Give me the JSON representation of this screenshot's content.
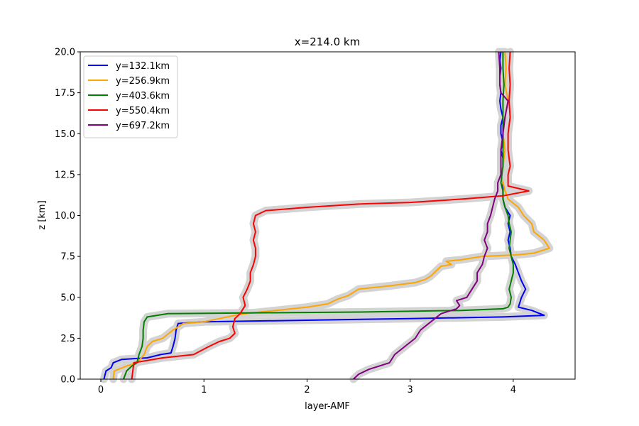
{
  "chart_data": {
    "type": "line",
    "title": "x=214.0 km",
    "xlabel": "layer-AMF",
    "ylabel": "z [km]",
    "xlim": [
      -0.2,
      4.6
    ],
    "ylim": [
      0.0,
      20.0
    ],
    "xticks": [
      0,
      1,
      2,
      3,
      4
    ],
    "xtick_labels": [
      "0",
      "1",
      "2",
      "3",
      "4"
    ],
    "yticks": [
      0.0,
      2.5,
      5.0,
      7.5,
      10.0,
      12.5,
      15.0,
      17.5,
      20.0
    ],
    "ytick_labels": [
      "0.0",
      "2.5",
      "5.0",
      "7.5",
      "10.0",
      "12.5",
      "15.0",
      "17.5",
      "20.0"
    ],
    "grid": false,
    "legend_position": "upper-left",
    "uncertainty_band": {
      "color": "#d3d3d3"
    },
    "series": [
      {
        "name": "y=132.1km",
        "color": "#0000ff",
        "points": [
          [
            0.03,
            0.0
          ],
          [
            0.05,
            0.5
          ],
          [
            0.1,
            0.7
          ],
          [
            0.12,
            1.0
          ],
          [
            0.2,
            1.2
          ],
          [
            0.45,
            1.3
          ],
          [
            0.58,
            1.5
          ],
          [
            0.68,
            1.6
          ],
          [
            0.7,
            2.0
          ],
          [
            0.72,
            2.5
          ],
          [
            0.73,
            3.0
          ],
          [
            0.75,
            3.4
          ],
          [
            1.0,
            3.5
          ],
          [
            2.0,
            3.6
          ],
          [
            3.0,
            3.7
          ],
          [
            3.9,
            3.8
          ],
          [
            4.3,
            3.9
          ],
          [
            4.18,
            4.2
          ],
          [
            4.05,
            4.4
          ],
          [
            4.08,
            5.0
          ],
          [
            4.12,
            5.5
          ],
          [
            4.08,
            6.0
          ],
          [
            4.05,
            6.5
          ],
          [
            4.02,
            7.0
          ],
          [
            3.98,
            7.5
          ],
          [
            3.97,
            8.0
          ],
          [
            3.95,
            8.5
          ],
          [
            3.97,
            9.0
          ],
          [
            3.95,
            9.5
          ],
          [
            3.97,
            10.0
          ],
          [
            3.92,
            10.5
          ],
          [
            3.9,
            11.0
          ],
          [
            3.9,
            11.5
          ],
          [
            3.9,
            12.0
          ],
          [
            3.88,
            12.5
          ],
          [
            3.9,
            13.0
          ],
          [
            3.9,
            13.5
          ],
          [
            3.88,
            14.0
          ],
          [
            3.9,
            14.5
          ],
          [
            3.88,
            15.0
          ],
          [
            3.88,
            15.5
          ],
          [
            3.9,
            16.0
          ],
          [
            3.88,
            16.5
          ],
          [
            3.87,
            17.0
          ],
          [
            3.88,
            17.5
          ],
          [
            3.87,
            18.0
          ],
          [
            3.87,
            18.5
          ],
          [
            3.88,
            19.0
          ],
          [
            3.87,
            19.5
          ],
          [
            3.88,
            20.0
          ]
        ]
      },
      {
        "name": "y=256.9km",
        "color": "#ffa500",
        "points": [
          [
            0.12,
            0.0
          ],
          [
            0.13,
            0.5
          ],
          [
            0.25,
            0.8
          ],
          [
            0.35,
            1.0
          ],
          [
            0.42,
            1.5
          ],
          [
            0.45,
            2.0
          ],
          [
            0.5,
            2.3
          ],
          [
            0.6,
            2.5
          ],
          [
            0.7,
            3.0
          ],
          [
            0.8,
            3.4
          ],
          [
            1.0,
            3.5
          ],
          [
            1.15,
            3.7
          ],
          [
            1.3,
            3.9
          ],
          [
            1.4,
            4.0
          ],
          [
            1.7,
            4.2
          ],
          [
            2.0,
            4.4
          ],
          [
            2.2,
            4.6
          ],
          [
            2.3,
            4.9
          ],
          [
            2.4,
            5.1
          ],
          [
            2.5,
            5.5
          ],
          [
            2.8,
            5.7
          ],
          [
            3.05,
            5.9
          ],
          [
            3.15,
            6.1
          ],
          [
            3.2,
            6.3
          ],
          [
            3.25,
            6.6
          ],
          [
            3.3,
            6.9
          ],
          [
            3.4,
            7.0
          ],
          [
            3.35,
            7.2
          ],
          [
            3.5,
            7.3
          ],
          [
            3.7,
            7.5
          ],
          [
            4.05,
            7.6
          ],
          [
            4.2,
            7.7
          ],
          [
            4.35,
            8.0
          ],
          [
            4.3,
            8.5
          ],
          [
            4.2,
            9.0
          ],
          [
            4.18,
            9.5
          ],
          [
            4.1,
            10.0
          ],
          [
            4.05,
            10.5
          ],
          [
            3.95,
            11.0
          ],
          [
            3.92,
            11.5
          ],
          [
            3.9,
            12.0
          ],
          [
            3.88,
            12.5
          ],
          [
            3.9,
            13.0
          ],
          [
            3.92,
            14.0
          ],
          [
            3.9,
            15.0
          ],
          [
            3.92,
            16.0
          ],
          [
            3.95,
            17.0
          ],
          [
            3.92,
            18.0
          ],
          [
            3.93,
            19.0
          ],
          [
            3.92,
            20.0
          ]
        ]
      },
      {
        "name": "y=403.6km",
        "color": "#008000",
        "points": [
          [
            0.22,
            0.0
          ],
          [
            0.25,
            0.5
          ],
          [
            0.3,
            0.8
          ],
          [
            0.35,
            1.0
          ],
          [
            0.37,
            1.5
          ],
          [
            0.4,
            2.0
          ],
          [
            0.41,
            2.5
          ],
          [
            0.41,
            3.0
          ],
          [
            0.42,
            3.5
          ],
          [
            0.45,
            3.8
          ],
          [
            0.65,
            4.0
          ],
          [
            1.5,
            4.05
          ],
          [
            2.5,
            4.1
          ],
          [
            3.5,
            4.2
          ],
          [
            3.9,
            4.3
          ],
          [
            3.95,
            4.4
          ],
          [
            3.97,
            4.6
          ],
          [
            3.98,
            5.0
          ],
          [
            3.96,
            5.5
          ],
          [
            3.98,
            6.0
          ],
          [
            4.0,
            6.5
          ],
          [
            4.0,
            7.0
          ],
          [
            3.98,
            7.5
          ],
          [
            3.96,
            8.0
          ],
          [
            3.97,
            8.5
          ],
          [
            3.98,
            9.0
          ],
          [
            3.96,
            9.5
          ],
          [
            3.95,
            10.0
          ],
          [
            3.92,
            10.5
          ],
          [
            3.9,
            11.0
          ],
          [
            3.9,
            11.5
          ],
          [
            3.88,
            12.0
          ],
          [
            3.89,
            12.5
          ],
          [
            3.9,
            13.0
          ],
          [
            3.9,
            13.5
          ],
          [
            3.9,
            14.0
          ],
          [
            3.9,
            15.0
          ],
          [
            3.9,
            16.0
          ],
          [
            3.9,
            17.0
          ],
          [
            3.91,
            18.0
          ],
          [
            3.9,
            19.0
          ],
          [
            3.9,
            20.0
          ]
        ]
      },
      {
        "name": "y=550.4km",
        "color": "#ff0000",
        "points": [
          [
            0.3,
            0.0
          ],
          [
            0.31,
            0.5
          ],
          [
            0.32,
            1.0
          ],
          [
            0.6,
            1.3
          ],
          [
            0.9,
            1.5
          ],
          [
            1.05,
            2.0
          ],
          [
            1.15,
            2.3
          ],
          [
            1.25,
            2.5
          ],
          [
            1.3,
            2.8
          ],
          [
            1.28,
            3.2
          ],
          [
            1.3,
            3.7
          ],
          [
            1.35,
            4.0
          ],
          [
            1.4,
            4.5
          ],
          [
            1.38,
            5.0
          ],
          [
            1.42,
            5.5
          ],
          [
            1.45,
            6.0
          ],
          [
            1.45,
            6.5
          ],
          [
            1.48,
            7.0
          ],
          [
            1.5,
            7.5
          ],
          [
            1.5,
            8.0
          ],
          [
            1.48,
            8.5
          ],
          [
            1.5,
            9.0
          ],
          [
            1.48,
            9.5
          ],
          [
            1.5,
            10.0
          ],
          [
            1.6,
            10.3
          ],
          [
            2.0,
            10.5
          ],
          [
            2.5,
            10.7
          ],
          [
            3.0,
            10.8
          ],
          [
            3.5,
            11.0
          ],
          [
            3.9,
            11.2
          ],
          [
            4.15,
            11.5
          ],
          [
            3.95,
            11.8
          ],
          [
            3.95,
            12.5
          ],
          [
            3.97,
            13.0
          ],
          [
            3.95,
            14.0
          ],
          [
            3.95,
            15.0
          ],
          [
            3.97,
            16.0
          ],
          [
            3.96,
            17.0
          ],
          [
            3.97,
            18.0
          ],
          [
            3.96,
            19.0
          ],
          [
            3.97,
            20.0
          ]
        ]
      },
      {
        "name": "y=697.2km",
        "color": "#800080",
        "points": [
          [
            2.45,
            0.0
          ],
          [
            2.5,
            0.3
          ],
          [
            2.6,
            0.6
          ],
          [
            2.7,
            0.8
          ],
          [
            2.8,
            1.0
          ],
          [
            2.85,
            1.5
          ],
          [
            2.95,
            2.0
          ],
          [
            3.05,
            2.5
          ],
          [
            3.1,
            3.0
          ],
          [
            3.2,
            3.5
          ],
          [
            3.3,
            4.0
          ],
          [
            3.45,
            4.3
          ],
          [
            3.48,
            4.5
          ],
          [
            3.45,
            4.8
          ],
          [
            3.55,
            5.0
          ],
          [
            3.6,
            5.5
          ],
          [
            3.65,
            6.0
          ],
          [
            3.65,
            6.5
          ],
          [
            3.7,
            7.0
          ],
          [
            3.72,
            7.5
          ],
          [
            3.75,
            8.0
          ],
          [
            3.72,
            8.5
          ],
          [
            3.75,
            9.0
          ],
          [
            3.75,
            9.5
          ],
          [
            3.78,
            10.0
          ],
          [
            3.8,
            10.5
          ],
          [
            3.82,
            11.0
          ],
          [
            3.85,
            11.5
          ],
          [
            3.85,
            12.0
          ],
          [
            3.88,
            12.5
          ],
          [
            3.88,
            13.0
          ],
          [
            3.88,
            14.0
          ],
          [
            3.9,
            15.0
          ],
          [
            3.92,
            16.0
          ],
          [
            3.95,
            17.0
          ],
          [
            3.88,
            17.5
          ],
          [
            3.87,
            18.0
          ],
          [
            3.87,
            19.0
          ],
          [
            3.86,
            20.0
          ]
        ]
      }
    ]
  }
}
